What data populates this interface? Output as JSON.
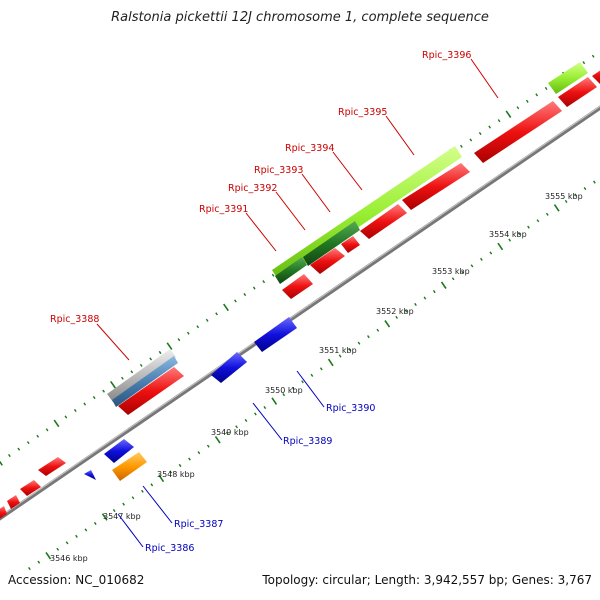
{
  "title": "Ralstonia pickettii 12J chromosome 1, complete sequence",
  "footer": {
    "accession": "Accession: NC_010682",
    "summary": "Topology: circular; Length: 3,942,557 bp; Genes: 3,767"
  },
  "colors": {
    "backbone": "#8c8c8c",
    "tick": "#1a7a1a",
    "forward_gene": "#ee1111",
    "reverse_gene": "#1010dd",
    "green_feature": "#99ee33",
    "darkgreen_feature": "#227722",
    "gray_feature": "#bbbbbb",
    "steelblue_feature": "#4a7fb0",
    "orange_feature": "#ff9900",
    "label_red": "#cc0000",
    "label_blue": "#0000bb"
  },
  "kbp_labels": [
    "3546 kbp",
    "3547 kbp",
    "3548 kbp",
    "3549 kbp",
    "3550 kbp",
    "3551 kbp",
    "3552 kbp",
    "3553 kbp",
    "3554 kbp",
    "3555 kbp"
  ],
  "gene_labels": {
    "top": [
      "Rpic_3388",
      "Rpic_3391",
      "Rpic_3392",
      "Rpic_3393",
      "Rpic_3394",
      "Rpic_3395",
      "Rpic_3396"
    ],
    "bottom": [
      "Rpic_3386",
      "Rpic_3387",
      "Rpic_3389",
      "Rpic_3390"
    ]
  }
}
